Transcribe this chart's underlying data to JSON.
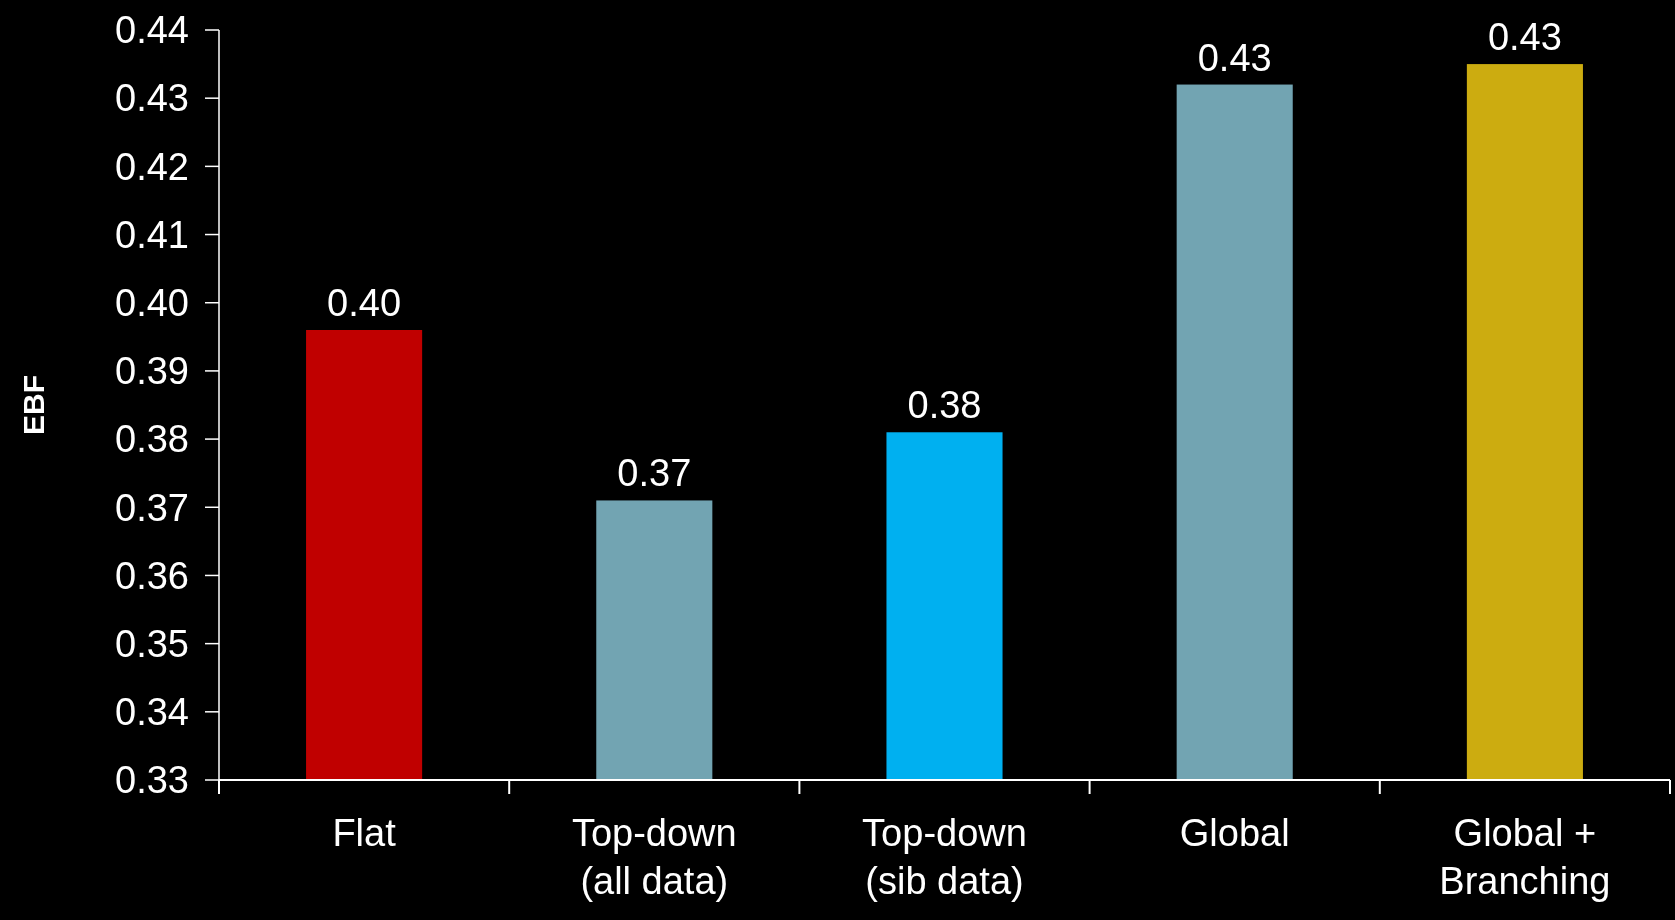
{
  "chart_data": {
    "type": "bar",
    "ylabel": "EBF",
    "categories": [
      "Flat",
      "Top-down (all data)",
      "Top-down (sib data)",
      "Global",
      "Global + Branching"
    ],
    "values": [
      0.396,
      0.371,
      0.381,
      0.432,
      0.435
    ],
    "colors": [
      "#c00000",
      "#72a4b2",
      "#00b0f0",
      "#72a4b2",
      "#ccac10"
    ],
    "value_labels": [
      "0.40",
      "0.37",
      "0.38",
      "0.43",
      "0.43"
    ],
    "ylim": [
      0.33,
      0.44
    ],
    "yticks": [
      {
        "value": 0.33,
        "label": "0.33"
      },
      {
        "value": 0.34,
        "label": "0.34"
      },
      {
        "value": 0.35,
        "label": "0.35"
      },
      {
        "value": 0.36,
        "label": "0.36"
      },
      {
        "value": 0.37,
        "label": "0.37"
      },
      {
        "value": 0.38,
        "label": "0.38"
      },
      {
        "value": 0.39,
        "label": "0.39"
      },
      {
        "value": 0.4,
        "label": "0.40"
      },
      {
        "value": 0.41,
        "label": "0.41"
      },
      {
        "value": 0.42,
        "label": "0.42"
      },
      {
        "value": 0.43,
        "label": "0.43"
      },
      {
        "value": 0.44,
        "label": "0.44"
      }
    ],
    "grid": false
  }
}
